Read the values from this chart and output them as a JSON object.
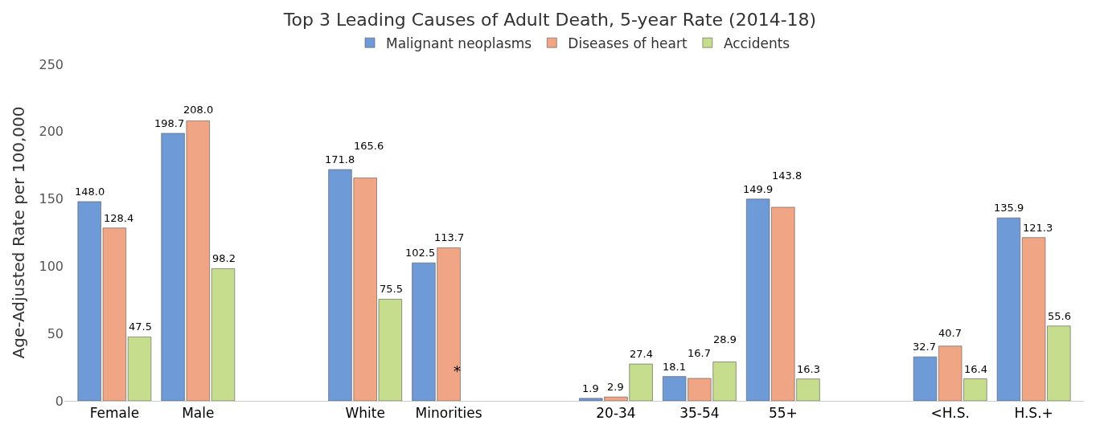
{
  "chart_data": {
    "type": "bar",
    "title": "Top 3 Leading Causes of Adult Death, 5-year Rate (2014-18)",
    "ylabel": "Age-Adjusted Rate per 100,000",
    "categories": [
      "Female",
      "Male",
      null,
      "White",
      "Minorities",
      null,
      "20-34",
      "35-54",
      "55+",
      null,
      "<H.S.",
      "H.S.+"
    ],
    "series": [
      {
        "name": "Malignant neoplasms",
        "color": "#6f9ad8",
        "values": [
          148.0,
          198.7,
          null,
          171.8,
          102.5,
          null,
          1.9,
          18.1,
          149.9,
          null,
          32.7,
          135.9
        ],
        "value_labels": [
          "148.0",
          "198.7",
          null,
          "171.8",
          "102.5",
          null,
          "1.9",
          "18.1",
          "149.9",
          null,
          "32.7",
          "135.9"
        ]
      },
      {
        "name": "Diseases of heart",
        "color": "#f0a684",
        "values": [
          128.4,
          208.0,
          null,
          165.6,
          113.7,
          null,
          2.9,
          16.7,
          143.8,
          null,
          40.7,
          121.3
        ],
        "value_labels": [
          "128.4",
          "208.0",
          null,
          "165.6",
          "113.7",
          null,
          "2.9",
          "16.7",
          "143.8",
          null,
          "40.7",
          "121.3"
        ]
      },
      {
        "name": "Accidents",
        "color": "#c5dd8c",
        "values": [
          47.5,
          98.2,
          null,
          75.5,
          null,
          null,
          27.4,
          28.9,
          16.3,
          null,
          16.4,
          55.6
        ],
        "value_labels": [
          "47.5",
          "98.2",
          null,
          "75.5",
          null,
          null,
          "27.4",
          "28.9",
          "16.3",
          null,
          "16.4",
          "55.6"
        ]
      }
    ],
    "annotations": [
      "*"
    ],
    "ylim": [
      0,
      250
    ],
    "yticks": [
      0,
      50,
      100,
      150,
      200,
      250
    ],
    "grid": false,
    "legend": "top"
  }
}
